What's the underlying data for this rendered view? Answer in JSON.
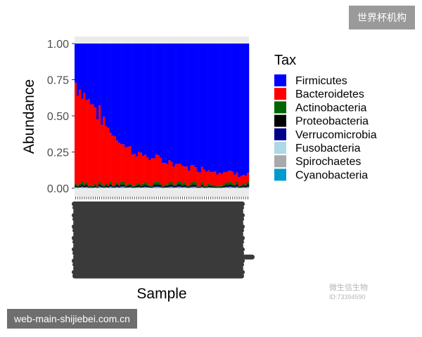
{
  "watermark": {
    "top_badge": "世界杯机构",
    "bottom_badge": "web-main-shijiebei.com.cn",
    "wechat_name": "微生信生物",
    "wechat_id": "ID:73394590"
  },
  "chart_data": {
    "type": "bar",
    "stacked": true,
    "title": "",
    "xlabel": "Sample",
    "ylabel": "Abundance",
    "ylim": [
      0,
      1
    ],
    "yticks": [
      "0.00",
      "0.25",
      "0.50",
      "0.75",
      "1.00"
    ],
    "x_tick_labels_legible": false,
    "grid": false,
    "legend_title": "Tax",
    "legend_position": "right",
    "n_samples": 80,
    "series": [
      {
        "name": "Firmicutes",
        "color": "#0000ff"
      },
      {
        "name": "Bacteroidetes",
        "color": "#ff0000"
      },
      {
        "name": "Actinobacteria",
        "color": "#006400"
      },
      {
        "name": "Proteobacteria",
        "color": "#000000"
      },
      {
        "name": "Verrucomicrobia",
        "color": "#00008b"
      },
      {
        "name": "Fusobacteria",
        "color": "#add8e6"
      },
      {
        "name": "Spirochaetes",
        "color": "#a9a9a9"
      },
      {
        "name": "Cyanobacteria",
        "color": "#009acd"
      }
    ],
    "bacteroidetes_profile": [
      [
        0,
        0.7
      ],
      [
        5,
        0.6
      ],
      [
        10,
        0.5
      ],
      [
        15,
        0.38
      ],
      [
        20,
        0.3
      ],
      [
        25,
        0.24
      ],
      [
        30,
        0.2
      ],
      [
        40,
        0.16
      ],
      [
        50,
        0.12
      ],
      [
        60,
        0.1
      ],
      [
        70,
        0.08
      ],
      [
        79,
        0.06
      ]
    ],
    "minor_phyla_share": 0.03
  }
}
